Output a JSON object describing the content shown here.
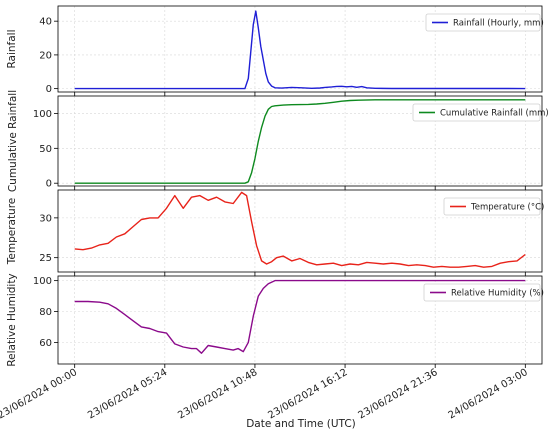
{
  "chart_data": {
    "type": "line",
    "xlabel": "Date and Time (UTC)",
    "x_ticks": [
      "23/06/2024 00:00",
      "23/06/2024 05:24",
      "23/06/2024 10:48",
      "23/06/2024 16:12",
      "23/06/2024 21:36",
      "24/06/2024 03:00"
    ],
    "x_range_hours": [
      -1,
      28
    ],
    "grid": true,
    "legend_position": "top-right",
    "panels": [
      {
        "ylabel": "Rainfall",
        "ylim": [
          -2,
          49
        ],
        "yticks": [
          0,
          20,
          40
        ],
        "series": [
          {
            "name": "Rainfall (Hourly, mm)",
            "color": "#1f1fd6",
            "x": [
              0,
              10.2,
              10.4,
              10.55,
              10.7,
              10.85,
              11.0,
              11.15,
              11.3,
              11.45,
              11.6,
              11.8,
              12.0,
              12.4,
              13.0,
              13.6,
              14.2,
              14.7,
              15.0,
              15.4,
              15.7,
              16.0,
              16.3,
              16.6,
              16.9,
              17.2,
              17.5,
              18.0,
              19,
              20,
              22,
              24,
              26,
              27
            ],
            "y": [
              0,
              0,
              6,
              22,
              38,
              46,
              36,
              25,
              17,
              9,
              4,
              1.5,
              0.5,
              0.3,
              0.7,
              0.5,
              0.2,
              0.4,
              0.7,
              1.0,
              1.3,
              1.4,
              1.1,
              1.3,
              0.8,
              1.2,
              0.5,
              0.2,
              0.1,
              0.1,
              0.1,
              0.1,
              0.1,
              0
            ]
          }
        ]
      },
      {
        "ylabel": "Cumulative Rainfall",
        "ylim": [
          -4,
          125
        ],
        "yticks": [
          0,
          50,
          100
        ],
        "series": [
          {
            "name": "Cumulative Rainfall (mm)",
            "color": "#0e8a1f",
            "x": [
              0,
              10.2,
              10.4,
              10.6,
              10.8,
              11.0,
              11.2,
              11.4,
              11.6,
              11.8,
              12.0,
              12.5,
              13.0,
              14.0,
              14.5,
              15.0,
              15.5,
              16.0,
              16.5,
              17.0,
              18,
              20,
              22,
              24,
              26,
              27
            ],
            "y": [
              0,
              0,
              2,
              15,
              35,
              60,
              80,
              96,
              106,
              110,
              111,
              112,
              112.5,
              113,
              113.5,
              114.5,
              116,
              117.5,
              118.5,
              119,
              119.5,
              119.5,
              119.5,
              119.5,
              119.5,
              119.5
            ]
          }
        ]
      },
      {
        "ylabel": "Temperature",
        "ylim": [
          23.2,
          33.5
        ],
        "yticks": [
          25,
          30
        ],
        "series": [
          {
            "name": "Temperature (°C)",
            "color": "#e8231a",
            "x": [
              0,
              0.5,
              1,
              1.5,
              2,
              2.5,
              3,
              3.5,
              4,
              4.5,
              5,
              5.5,
              6,
              6.5,
              7,
              7.5,
              8,
              8.5,
              9,
              9.5,
              10,
              10.3,
              10.6,
              10.9,
              11.2,
              11.5,
              11.8,
              12.1,
              12.5,
              13,
              13.5,
              14,
              14.5,
              15,
              15.5,
              16,
              16.5,
              17,
              17.5,
              18,
              18.5,
              19,
              19.5,
              20,
              20.5,
              21,
              21.5,
              22,
              22.5,
              23,
              23.5,
              24,
              24.5,
              25,
              25.5,
              26,
              26.5,
              27
            ],
            "y": [
              26.1,
              26.0,
              26.2,
              26.6,
              26.8,
              27.6,
              28.0,
              28.9,
              29.8,
              30.0,
              30.0,
              31.2,
              32.8,
              31.2,
              32.6,
              32.8,
              32.2,
              32.6,
              32.0,
              31.8,
              33.2,
              32.8,
              29.5,
              26.5,
              24.6,
              24.2,
              24.5,
              25.0,
              25.2,
              24.6,
              24.9,
              24.4,
              24.1,
              24.2,
              24.3,
              24.0,
              24.2,
              24.1,
              24.4,
              24.3,
              24.2,
              24.3,
              24.2,
              24.0,
              24.1,
              24.0,
              23.8,
              23.9,
              23.8,
              23.8,
              23.9,
              24.0,
              23.8,
              23.9,
              24.3,
              24.5,
              24.6,
              25.4
            ]
          }
        ]
      },
      {
        "ylabel": "Relative Humidity",
        "ylim": [
          46,
          103
        ],
        "yticks": [
          60,
          80,
          100
        ],
        "series": [
          {
            "name": "Relative Humidity (%)",
            "color": "#8b0a8b",
            "x": [
              0,
              0.8,
              1.5,
              2,
              2.5,
              3,
              3.5,
              4,
              4.5,
              5,
              5.5,
              6,
              6.5,
              7,
              7.3,
              7.6,
              8,
              8.5,
              9,
              9.5,
              9.8,
              10.1,
              10.4,
              10.7,
              11.0,
              11.3,
              11.6,
              12,
              13,
              15,
              17,
              20,
              24,
              27
            ],
            "y": [
              86.5,
              86.5,
              86.0,
              85,
              82,
              78,
              74,
              70,
              69,
              67,
              66,
              59,
              57,
              56,
              56,
              53,
              58,
              57,
              56,
              55,
              56,
              54,
              60,
              77,
              90,
              95,
              98,
              100,
              100,
              100,
              100,
              100,
              100,
              100
            ]
          }
        ]
      }
    ]
  }
}
